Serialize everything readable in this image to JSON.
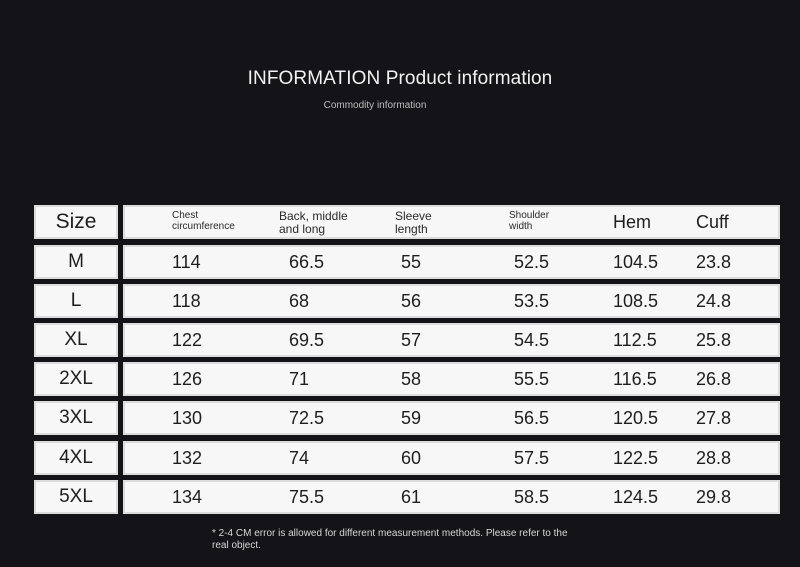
{
  "header": {
    "title": "INFORMATION Product information",
    "subtitle": "Commodity information"
  },
  "table": {
    "headers": {
      "size": "Size",
      "chest": "Chest circumference",
      "back": "Back, middle and long",
      "sleeve": "Sleeve length",
      "shoulder": "Shoulder width",
      "hem": "Hem",
      "cuff": "Cuff"
    },
    "rows": [
      {
        "size": "M",
        "chest": "114",
        "back": "66.5",
        "sleeve": "55",
        "shoulder": "52.5",
        "hem": "104.5",
        "cuff": "23.8"
      },
      {
        "size": "L",
        "chest": "118",
        "back": "68",
        "sleeve": "56",
        "shoulder": "53.5",
        "hem": "108.5",
        "cuff": "24.8"
      },
      {
        "size": "XL",
        "chest": "122",
        "back": "69.5",
        "sleeve": "57",
        "shoulder": "54.5",
        "hem": "112.5",
        "cuff": "25.8"
      },
      {
        "size": "2XL",
        "chest": "126",
        "back": "71",
        "sleeve": "58",
        "shoulder": "55.5",
        "hem": "116.5",
        "cuff": "26.8"
      },
      {
        "size": "3XL",
        "chest": "130",
        "back": "72.5",
        "sleeve": "59",
        "shoulder": "56.5",
        "hem": "120.5",
        "cuff": "27.8"
      },
      {
        "size": "4XL",
        "chest": "132",
        "back": "74",
        "sleeve": "60",
        "shoulder": "57.5",
        "hem": "122.5",
        "cuff": "28.8"
      },
      {
        "size": "5XL",
        "chest": "134",
        "back": "75.5",
        "sleeve": "61",
        "shoulder": "58.5",
        "hem": "124.5",
        "cuff": "29.8"
      }
    ]
  },
  "footnote": "* 2-4 CM error is allowed for different measurement methods. Please refer to the real object."
}
